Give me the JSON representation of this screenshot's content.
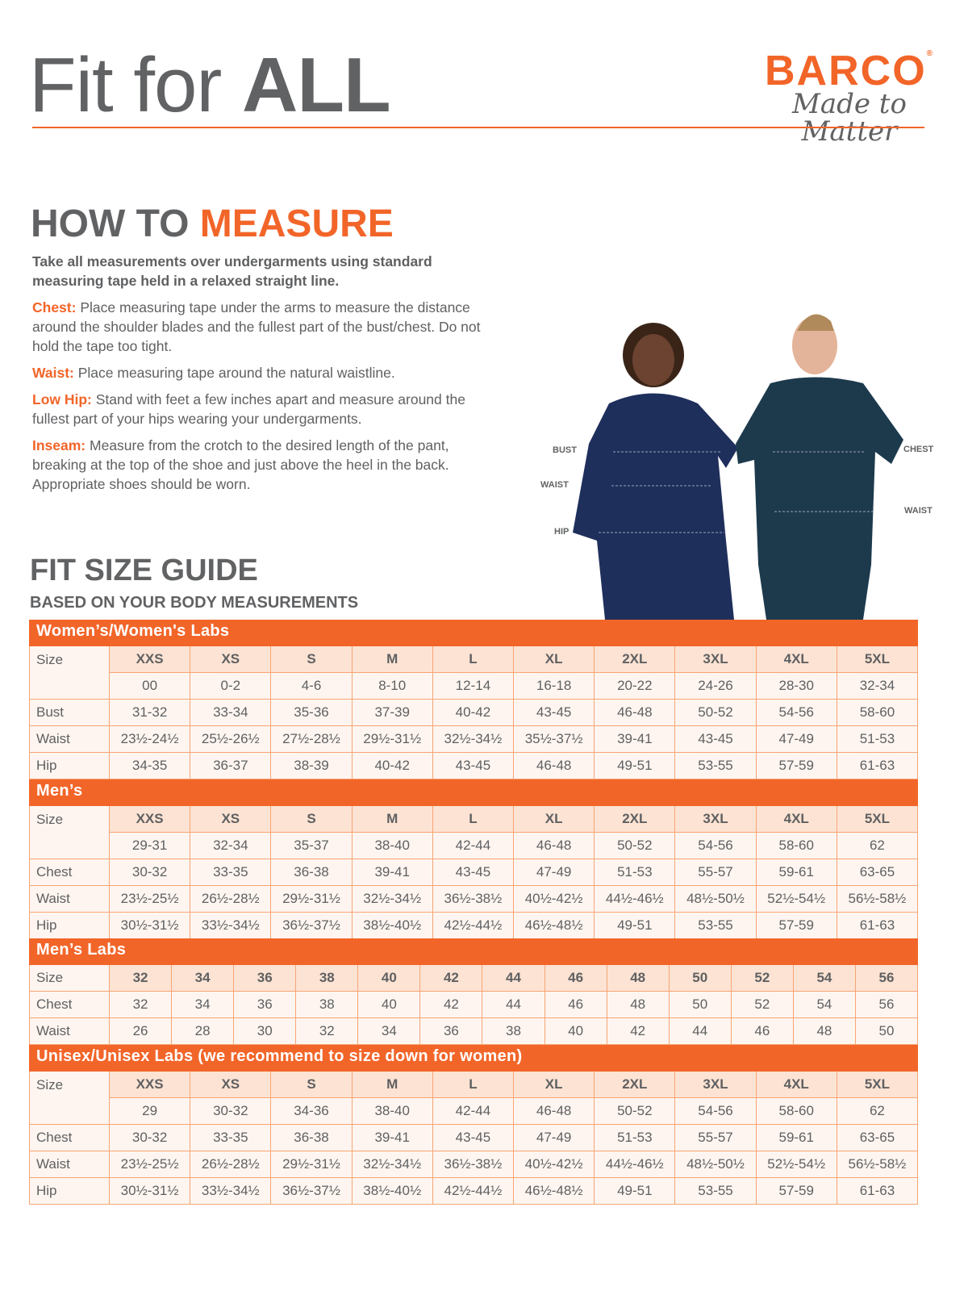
{
  "header": {
    "title_light": "Fit for ",
    "title_bold": "ALL",
    "logo_brand": "BARCO",
    "logo_mark": "®",
    "logo_tagline": "Made to Matter"
  },
  "measure": {
    "title_gray": "HOW TO ",
    "title_orange": "MEASURE",
    "lead": "Take all measurements over undergarments using standard measuring tape held in a relaxed straight line.",
    "items": [
      {
        "key": "Chest:",
        "text": "Place measuring tape under the arms to measure the distance around the shoulder blades and the fullest part of the bust/chest. Do not hold the tape too tight."
      },
      {
        "key": "Waist:",
        "text": "Place measuring tape around the natural waistline."
      },
      {
        "key": "Low Hip:",
        "text": "Stand with feet a few inches apart and measure around the fullest part of your hips wearing your undergarments."
      },
      {
        "key": "Inseam:",
        "text": "Measure from the crotch to the desired length of the pant, breaking at the top of the shoe and just above the heel in the back. Appropriate shoes should be worn."
      }
    ]
  },
  "photo": {
    "labels_women": [
      "BUST",
      "WAIST",
      "HIP"
    ],
    "labels_men": [
      "CHEST",
      "WAIST"
    ],
    "scrub_color": "#1f2f5c",
    "scrub_color_men": "#1d3a4d"
  },
  "guide": {
    "title": "FIT SIZE GUIDE",
    "subtitle": "BASED ON YOUR BODY MEASUREMENTS"
  },
  "colors": {
    "accent": "#f26529",
    "size_cell": "#fde3d3",
    "cell": "#fef5f0",
    "border": "#f7a574",
    "text": "#5f6062"
  },
  "tables": [
    {
      "title": "Women’s/Women's Labs",
      "label": "Size",
      "sizes": [
        "XXS",
        "XS",
        "S",
        "M",
        "L",
        "XL",
        "2XL",
        "3XL",
        "4XL",
        "5XL"
      ],
      "alt": [
        "00",
        "0-2",
        "4-6",
        "8-10",
        "12-14",
        "16-18",
        "20-22",
        "24-26",
        "28-30",
        "32-34"
      ],
      "rows": [
        {
          "label": "Bust",
          "values": [
            "31-32",
            "33-34",
            "35-36",
            "37-39",
            "40-42",
            "43-45",
            "46-48",
            "50-52",
            "54-56",
            "58-60"
          ]
        },
        {
          "label": "Waist",
          "values": [
            "23½-24½",
            "25½-26½",
            "27½-28½",
            "29½-31½",
            "32½-34½",
            "35½-37½",
            "39-41",
            "43-45",
            "47-49",
            "51-53"
          ]
        },
        {
          "label": "Hip",
          "values": [
            "34-35",
            "36-37",
            "38-39",
            "40-42",
            "43-45",
            "46-48",
            "49-51",
            "53-55",
            "57-59",
            "61-63"
          ]
        }
      ]
    },
    {
      "title": "Men’s",
      "label": "Size",
      "sizes": [
        "XXS",
        "XS",
        "S",
        "M",
        "L",
        "XL",
        "2XL",
        "3XL",
        "4XL",
        "5XL"
      ],
      "alt": [
        "29-31",
        "32-34",
        "35-37",
        "38-40",
        "42-44",
        "46-48",
        "50-52",
        "54-56",
        "58-60",
        "62"
      ],
      "rows": [
        {
          "label": "Chest",
          "values": [
            "30-32",
            "33-35",
            "36-38",
            "39-41",
            "43-45",
            "47-49",
            "51-53",
            "55-57",
            "59-61",
            "63-65"
          ]
        },
        {
          "label": "Waist",
          "values": [
            "23½-25½",
            "26½-28½",
            "29½-31½",
            "32½-34½",
            "36½-38½",
            "40½-42½",
            "44½-46½",
            "48½-50½",
            "52½-54½",
            "56½-58½"
          ]
        },
        {
          "label": "Hip",
          "values": [
            "30½-31½",
            "33½-34½",
            "36½-37½",
            "38½-40½",
            "42½-44½",
            "46½-48½",
            "49-51",
            "53-55",
            "57-59",
            "61-63"
          ]
        }
      ]
    },
    {
      "title": "Men’s Labs",
      "label": "Size",
      "sizes": [
        "32",
        "34",
        "36",
        "38",
        "40",
        "42",
        "44",
        "46",
        "48",
        "50",
        "52",
        "54",
        "56"
      ],
      "rows": [
        {
          "label": "Chest",
          "values": [
            "32",
            "34",
            "36",
            "38",
            "40",
            "42",
            "44",
            "46",
            "48",
            "50",
            "52",
            "54",
            "56"
          ]
        },
        {
          "label": "Waist",
          "values": [
            "26",
            "28",
            "30",
            "32",
            "34",
            "36",
            "38",
            "40",
            "42",
            "44",
            "46",
            "48",
            "50"
          ]
        }
      ]
    },
    {
      "title": "Unisex/Unisex Labs (we recommend to size down for women)",
      "label": "Size",
      "sizes": [
        "XXS",
        "XS",
        "S",
        "M",
        "L",
        "XL",
        "2XL",
        "3XL",
        "4XL",
        "5XL"
      ],
      "alt": [
        "29",
        "30-32",
        "34-36",
        "38-40",
        "42-44",
        "46-48",
        "50-52",
        "54-56",
        "58-60",
        "62"
      ],
      "rows": [
        {
          "label": "Chest",
          "values": [
            "30-32",
            "33-35",
            "36-38",
            "39-41",
            "43-45",
            "47-49",
            "51-53",
            "55-57",
            "59-61",
            "63-65"
          ]
        },
        {
          "label": "Waist",
          "values": [
            "23½-25½",
            "26½-28½",
            "29½-31½",
            "32½-34½",
            "36½-38½",
            "40½-42½",
            "44½-46½",
            "48½-50½",
            "52½-54½",
            "56½-58½"
          ]
        },
        {
          "label": "Hip",
          "values": [
            "30½-31½",
            "33½-34½",
            "36½-37½",
            "38½-40½",
            "42½-44½",
            "46½-48½",
            "49-51",
            "53-55",
            "57-59",
            "61-63"
          ]
        }
      ]
    }
  ]
}
